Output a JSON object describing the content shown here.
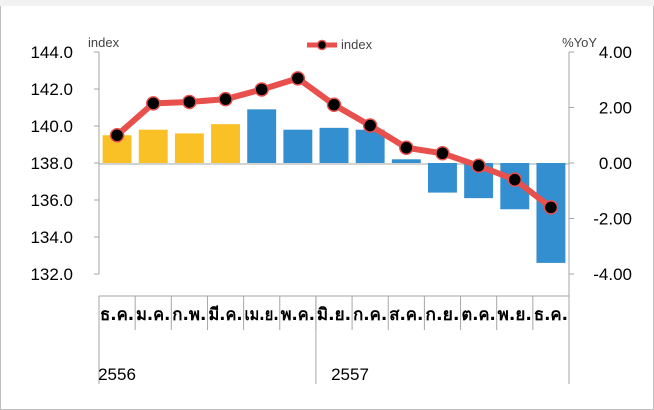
{
  "chart_data": {
    "type": "bar+line",
    "categories": [
      "ธ.ค.",
      "ม.ค.",
      "ก.พ.",
      "มี.ค.",
      "เม.ย.",
      "พ.ค.",
      "มิ.ย.",
      "ก.ค.",
      "ส.ค.",
      "ก.ย.",
      "ต.ค.",
      "พ.ย.",
      "ธ.ค."
    ],
    "years": [
      {
        "label": "2556",
        "category_index": 0
      },
      {
        "label": "2557",
        "category_index": 6
      }
    ],
    "left_axis": {
      "label": "index",
      "ylim": [
        132.0,
        144.0
      ],
      "ticks": [
        "144.0",
        "142.0",
        "140.0",
        "138.0",
        "136.0",
        "134.0",
        "132.0"
      ],
      "baseline": 138.0
    },
    "right_axis": {
      "label": "%YoY",
      "ylim": [
        -4.0,
        4.0
      ],
      "ticks": [
        "4.00",
        "2.00",
        "0.00",
        "-2.00",
        "-4.00"
      ]
    },
    "bars": {
      "axis": "left",
      "values": [
        139.5,
        139.8,
        139.6,
        140.1,
        140.9,
        139.8,
        139.9,
        139.8,
        138.2,
        136.4,
        136.1,
        135.5,
        132.6
      ],
      "colors": [
        "#f9c125",
        "#f9c125",
        "#f9c125",
        "#f9c125",
        "#338fcf",
        "#338fcf",
        "#338fcf",
        "#338fcf",
        "#338fcf",
        "#338fcf",
        "#338fcf",
        "#338fcf",
        "#338fcf"
      ]
    },
    "series": [
      {
        "name": "index",
        "axis": "right",
        "values": [
          1.0,
          2.15,
          2.2,
          2.3,
          2.65,
          3.05,
          2.1,
          1.35,
          0.55,
          0.35,
          -0.1,
          -0.6,
          -1.6
        ],
        "line_color": "#e8504d",
        "marker_color": "#000000"
      }
    ],
    "legend": {
      "position": "top-center"
    },
    "grid": false
  }
}
